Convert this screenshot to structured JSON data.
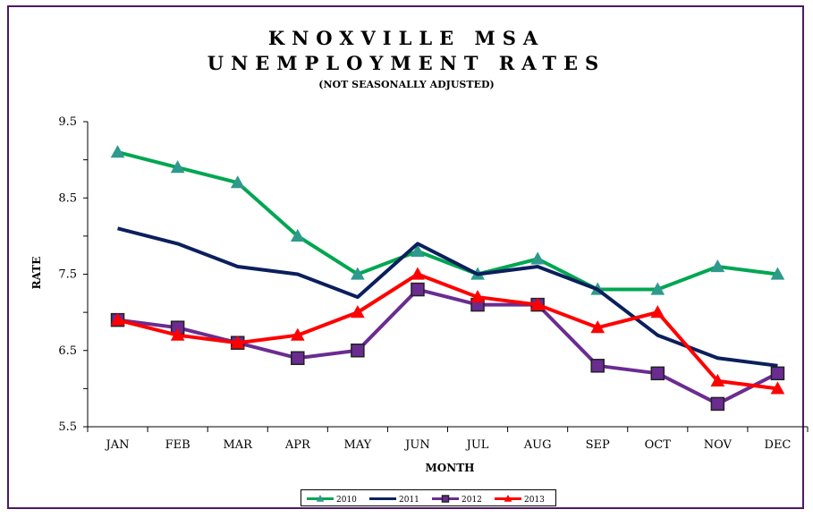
{
  "chart_data": {
    "type": "line",
    "title": "KNOXVILLE MSA",
    "title2": "UNEMPLOYMENT RATES",
    "subtitle": "(NOT SEASONALLY ADJUSTED)",
    "xlabel": "MONTH",
    "ylabel": "RATE",
    "ylim": [
      5.5,
      9.5
    ],
    "yticks": [
      "9.5",
      "8.5",
      "7.5",
      "6.5",
      "5.5"
    ],
    "grid": false,
    "legend_position": "bottom",
    "categories": [
      "JAN",
      "FEB",
      "MAR",
      "APR",
      "MAY",
      "JUN",
      "JUL",
      "AUG",
      "SEP",
      "OCT",
      "NOV",
      "DEC"
    ],
    "series": [
      {
        "name": "2010",
        "color": "#00a651",
        "marker": "triangle",
        "markerColor": "#2e9a8c",
        "values": [
          9.1,
          8.9,
          8.7,
          8.0,
          7.5,
          7.8,
          7.5,
          7.7,
          7.3,
          7.3,
          7.6,
          7.5
        ]
      },
      {
        "name": "2011",
        "color": "#0b1f5c",
        "marker": "none",
        "markerColor": "#0b1f5c",
        "values": [
          8.1,
          7.9,
          7.6,
          7.5,
          7.2,
          7.9,
          7.5,
          7.6,
          7.3,
          6.7,
          6.4,
          6.3
        ]
      },
      {
        "name": "2012",
        "color": "#6a2c91",
        "marker": "square",
        "markerColor": "#6a2c91",
        "values": [
          6.9,
          6.8,
          6.6,
          6.4,
          6.5,
          7.3,
          7.1,
          7.1,
          6.3,
          6.2,
          5.8,
          6.2
        ]
      },
      {
        "name": "2013",
        "color": "#ff0000",
        "marker": "triangle",
        "markerColor": "#ff0000",
        "values": [
          6.9,
          6.7,
          6.6,
          6.7,
          7.0,
          7.5,
          7.2,
          7.1,
          6.8,
          7.0,
          6.1,
          6.0
        ]
      }
    ]
  }
}
